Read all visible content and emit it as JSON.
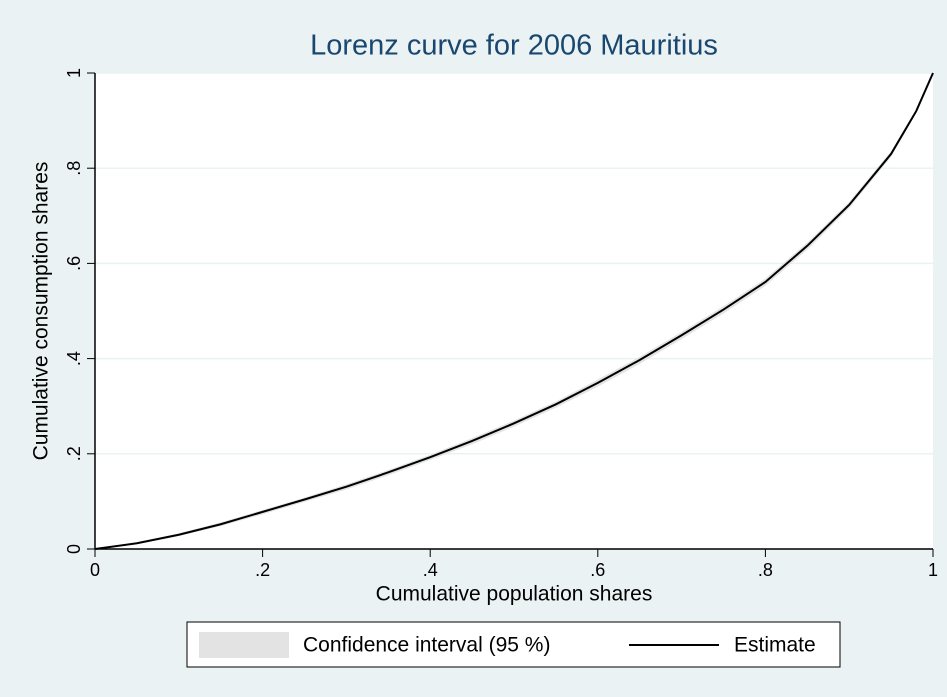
{
  "chart_data": {
    "type": "line",
    "title": "Lorenz curve for 2006 Mauritius",
    "x_label": "Cumulative population shares",
    "y_label": "Cumulative consumption shares",
    "x": [
      0,
      0.05,
      0.1,
      0.15,
      0.2,
      0.25,
      0.3,
      0.35,
      0.4,
      0.45,
      0.5,
      0.55,
      0.6,
      0.65,
      0.7,
      0.75,
      0.8,
      0.85,
      0.9,
      0.95,
      0.98,
      1
    ],
    "series": [
      {
        "name": "Confidence interval (95 %)",
        "color": "#e3e3e3",
        "type": "band",
        "lower": [
          0,
          0.01,
          0.027,
          0.048,
          0.073,
          0.099,
          0.125,
          0.155,
          0.187,
          0.22,
          0.257,
          0.297,
          0.341,
          0.389,
          0.441,
          0.495,
          0.553,
          0.629,
          0.716,
          0.824,
          0.916,
          1
        ],
        "upper": [
          0,
          0.014,
          0.033,
          0.056,
          0.082,
          0.108,
          0.136,
          0.166,
          0.198,
          0.233,
          0.27,
          0.31,
          0.356,
          0.404,
          0.456,
          0.51,
          0.568,
          0.644,
          0.729,
          0.836,
          0.924,
          1
        ]
      },
      {
        "name": "Estimate",
        "color": "#000000",
        "type": "line",
        "values": [
          0,
          0.012,
          0.03,
          0.052,
          0.078,
          0.104,
          0.131,
          0.161,
          0.193,
          0.227,
          0.264,
          0.304,
          0.349,
          0.397,
          0.449,
          0.503,
          0.561,
          0.637,
          0.723,
          0.83,
          0.92,
          1
        ]
      }
    ],
    "xlim": [
      0,
      1
    ],
    "ylim": [
      0,
      1
    ],
    "xticks": [
      0,
      {
        "value": 0.2,
        "label": ".2"
      },
      {
        "value": 0.4,
        "label": ".4"
      },
      {
        "value": 0.6,
        "label": ".6"
      },
      {
        "value": 0.8,
        "label": ".8"
      },
      1
    ],
    "yticks": [
      0,
      {
        "value": 0.2,
        "label": ".2"
      },
      {
        "value": 0.4,
        "label": ".4"
      },
      {
        "value": 0.6,
        "label": ".6"
      },
      {
        "value": 0.8,
        "label": ".8"
      },
      1
    ],
    "grid": true,
    "legend": "bottom"
  }
}
